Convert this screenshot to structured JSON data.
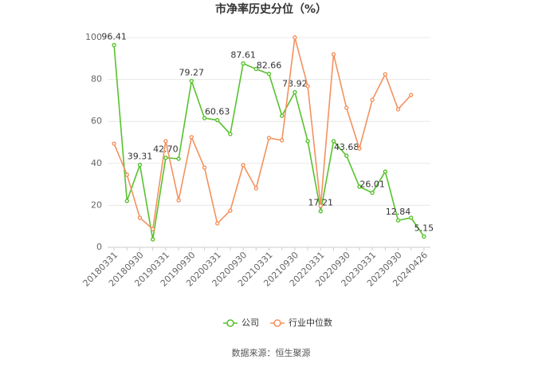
{
  "chart_data": {
    "type": "line",
    "title": "市净率历史分位（%）",
    "source": "数据来源：恒生聚源",
    "categories": [
      "20180331",
      null,
      "20180930",
      null,
      "20190331",
      null,
      "20190930",
      null,
      "20200331",
      null,
      "20200930",
      null,
      "20210331",
      null,
      "20210930",
      null,
      "20220331",
      null,
      "20220930",
      null,
      "20230331",
      null,
      "20230930",
      null,
      "20240426"
    ],
    "series": [
      {
        "name": "公司",
        "color": "#58c22e",
        "values": [
          96.41,
          22.1,
          39.31,
          3.8,
          42.7,
          42.2,
          79.27,
          61.6,
          60.63,
          54,
          87.61,
          85,
          82.66,
          62.7,
          73.92,
          50.6,
          17.21,
          50.6,
          43.68,
          28.9,
          26.01,
          36.1,
          12.84,
          14.1,
          5.15
        ],
        "value_labels": [
          "96.41",
          null,
          "39.31",
          null,
          "42.70",
          null,
          "79.27",
          null,
          "60.63",
          null,
          "87.61",
          null,
          "82.66",
          null,
          "73.92",
          null,
          "17.21",
          null,
          "43.68",
          null,
          "26.01",
          null,
          "12.84",
          null,
          "5.15"
        ]
      },
      {
        "name": "行业中位数",
        "color": "#f4915e",
        "values": [
          49.4,
          34.6,
          14.1,
          8.7,
          50.6,
          22.4,
          52.5,
          38,
          11.4,
          17.5,
          39.2,
          28.1,
          52.1,
          51,
          100,
          76.8,
          19.8,
          92,
          66.5,
          47.1,
          70.3,
          82.5,
          65.8,
          72.6,
          null
        ]
      }
    ],
    "ylim": [
      0,
      100
    ],
    "yticks": [
      0,
      20,
      40,
      60,
      80,
      100
    ],
    "grid": true
  }
}
